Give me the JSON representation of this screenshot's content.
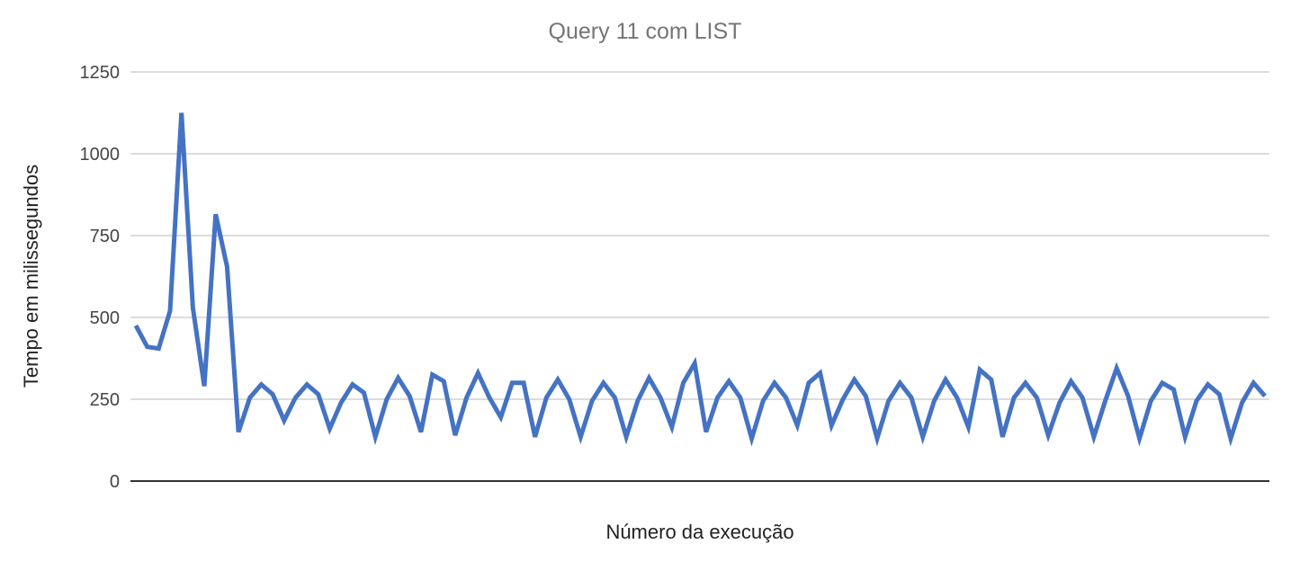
{
  "chart_data": {
    "type": "line",
    "title": "Query 11 com LIST",
    "xlabel": "Número da execução",
    "ylabel": "Tempo em milissegundos",
    "ylim": [
      0,
      1250
    ],
    "yticks": [
      "0",
      "250",
      "500",
      "750",
      "1000",
      "1250"
    ],
    "grid": true,
    "legend": "none",
    "series": [
      {
        "color": "#4472C4",
        "values": [
          475,
          410,
          405,
          520,
          1125,
          530,
          290,
          815,
          655,
          150,
          255,
          295,
          265,
          185,
          255,
          295,
          265,
          160,
          240,
          295,
          270,
          135,
          250,
          315,
          260,
          150,
          325,
          305,
          140,
          255,
          330,
          255,
          195,
          300,
          300,
          135,
          255,
          310,
          250,
          135,
          245,
          300,
          255,
          135,
          245,
          315,
          255,
          165,
          300,
          360,
          150,
          255,
          305,
          255,
          130,
          245,
          300,
          255,
          170,
          300,
          330,
          170,
          250,
          310,
          260,
          130,
          245,
          300,
          255,
          135,
          245,
          310,
          255,
          165,
          340,
          310,
          135,
          255,
          300,
          255,
          140,
          240,
          305,
          255,
          135,
          245,
          345,
          260,
          130,
          245,
          300,
          280,
          135,
          245,
          295,
          265,
          130,
          240,
          300,
          260
        ]
      }
    ]
  }
}
